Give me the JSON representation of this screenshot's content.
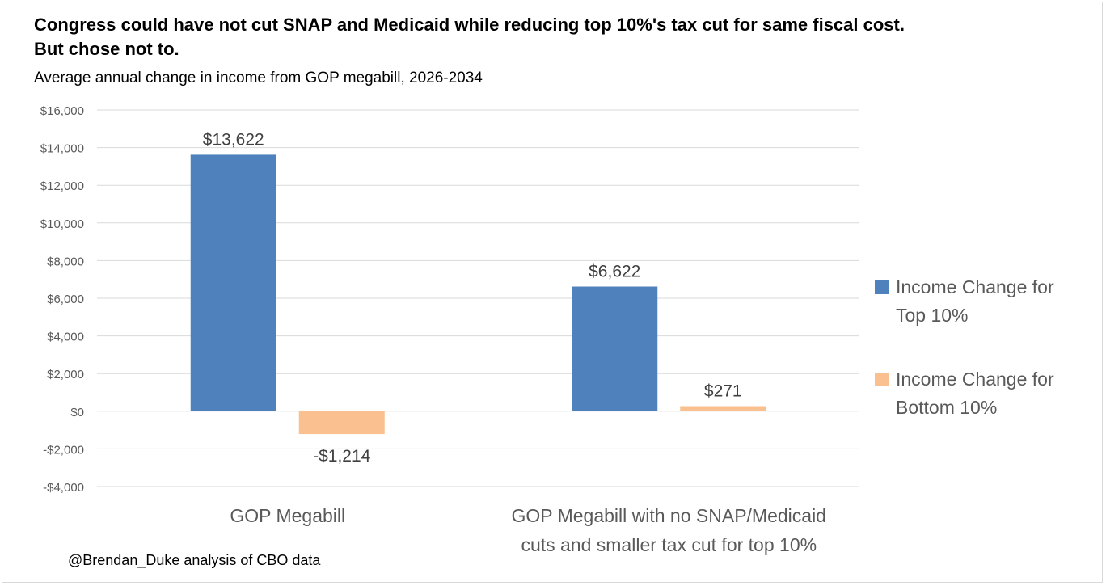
{
  "title_line1": "Congress could have not cut SNAP and Medicaid while reducing top 10%'s tax cut for same fiscal cost.",
  "title_line2": "But chose not to.",
  "subtitle": "Average annual change in income from GOP megabill, 2026-2034",
  "source": "@Brendan_Duke analysis of CBO data",
  "colors": {
    "top": "#4f81bd",
    "bottom": "#fac090",
    "grid": "#d9d9d9"
  },
  "chart_data": {
    "type": "bar",
    "categories": [
      [
        "GOP Megabill"
      ],
      [
        "GOP Megabill with no SNAP/Medicaid",
        "cuts and smaller tax cut for top 10%"
      ]
    ],
    "series": [
      {
        "name": "Income Change for Top 10%",
        "name_lines": [
          "Income Change for",
          "Top 10%"
        ],
        "values": [
          13622,
          6622
        ],
        "labels": [
          "$13,622",
          "$6,622"
        ]
      },
      {
        "name": "Income Change for Bottom 10%",
        "name_lines": [
          "Income Change for",
          "Bottom 10%"
        ],
        "values": [
          -1214,
          271
        ],
        "labels": [
          "-$1,214",
          "$271"
        ]
      }
    ],
    "ylim": [
      -4000,
      16000
    ],
    "yticks": [
      16000,
      14000,
      12000,
      10000,
      8000,
      6000,
      4000,
      2000,
      0,
      -2000,
      -4000
    ],
    "ytick_labels": [
      "$16,000",
      "$14,000",
      "$12,000",
      "$10,000",
      "$8,000",
      "$6,000",
      "$4,000",
      "$2,000",
      "$0",
      "-$2,000",
      "-$4,000"
    ],
    "grid": true,
    "legend": "right"
  }
}
